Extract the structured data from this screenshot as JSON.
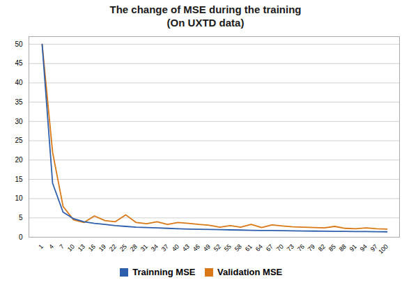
{
  "chart_data": {
    "type": "line",
    "title": "The change of MSE during the training",
    "subtitle": "(On UXTD data)",
    "categories": [
      "1",
      "4",
      "7",
      "10",
      "13",
      "16",
      "19",
      "22",
      "25",
      "28",
      "31",
      "34",
      "37",
      "40",
      "43",
      "46",
      "49",
      "52",
      "55",
      "58",
      "61",
      "64",
      "67",
      "70",
      "73",
      "76",
      "79",
      "82",
      "85",
      "88",
      "91",
      "94",
      "97",
      "100"
    ],
    "series": [
      {
        "name": "Trainning MSE",
        "color": "#2E5FAC",
        "values": [
          50.0,
          14.0,
          6.5,
          4.8,
          4.0,
          3.6,
          3.3,
          3.0,
          2.8,
          2.6,
          2.5,
          2.4,
          2.3,
          2.2,
          2.1,
          2.05,
          2.0,
          1.95,
          1.9,
          1.85,
          1.8,
          1.75,
          1.72,
          1.68,
          1.65,
          1.62,
          1.58,
          1.55,
          1.52,
          1.5,
          1.47,
          1.45,
          1.42,
          1.4
        ]
      },
      {
        "name": "Validation MSE",
        "color": "#D97816",
        "values": [
          50.0,
          22.0,
          8.0,
          4.5,
          3.8,
          5.5,
          4.3,
          4.0,
          5.8,
          3.8,
          3.5,
          4.0,
          3.3,
          3.8,
          3.6,
          3.3,
          3.1,
          2.6,
          3.0,
          2.6,
          3.3,
          2.5,
          3.2,
          2.9,
          2.7,
          2.6,
          2.5,
          2.4,
          2.8,
          2.3,
          2.2,
          2.4,
          2.2,
          2.1
        ]
      }
    ],
    "ylim": [
      0,
      52
    ],
    "yticks": [
      0,
      5,
      10,
      15,
      20,
      25,
      30,
      35,
      40,
      45,
      50
    ],
    "grid": true,
    "legend": "bottom"
  }
}
